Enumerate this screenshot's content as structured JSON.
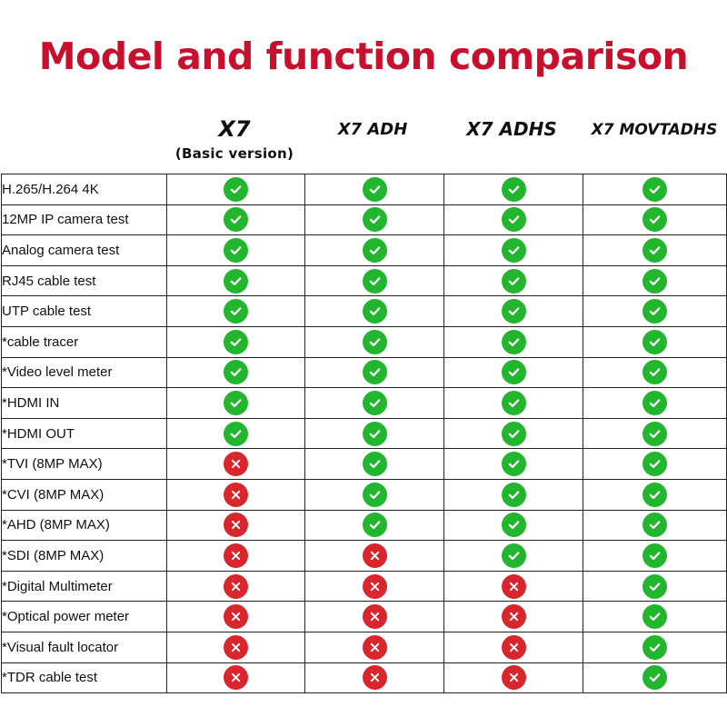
{
  "title": "Model and function comparison",
  "colors": {
    "title": "#c8102e",
    "supported": "#22b52e",
    "unsupported": "#d8262c"
  },
  "models": [
    {
      "name": "X7",
      "subtitle": "(Basic version)"
    },
    {
      "name": "X7 ADH"
    },
    {
      "name": "X7 ADHS"
    },
    {
      "name": "X7 MOVTADHS"
    }
  ],
  "icons": {
    "supported": "green-check-icon",
    "unsupported": "red-x-icon"
  },
  "features": [
    {
      "label": "H.265/H.264 4K",
      "support": [
        true,
        true,
        true,
        true
      ]
    },
    {
      "label": "12MP IP camera test",
      "support": [
        true,
        true,
        true,
        true
      ]
    },
    {
      "label": "Analog camera test",
      "support": [
        true,
        true,
        true,
        true
      ]
    },
    {
      "label": "RJ45 cable test",
      "support": [
        true,
        true,
        true,
        true
      ]
    },
    {
      "label": "UTP cable test",
      "support": [
        true,
        true,
        true,
        true
      ]
    },
    {
      "label": "*cable tracer",
      "support": [
        true,
        true,
        true,
        true
      ]
    },
    {
      "label": "*Video level meter",
      "support": [
        true,
        true,
        true,
        true
      ]
    },
    {
      "label": "*HDMI IN",
      "support": [
        true,
        true,
        true,
        true
      ]
    },
    {
      "label": "*HDMI OUT",
      "support": [
        true,
        true,
        true,
        true
      ]
    },
    {
      "label": "*TVI (8MP MAX)",
      "support": [
        false,
        true,
        true,
        true
      ]
    },
    {
      "label": "*CVI (8MP MAX)",
      "support": [
        false,
        true,
        true,
        true
      ]
    },
    {
      "label": "*AHD (8MP MAX)",
      "support": [
        false,
        true,
        true,
        true
      ]
    },
    {
      "label": "*SDI (8MP MAX)",
      "support": [
        false,
        false,
        true,
        true
      ]
    },
    {
      "label": "*Digital Multimeter",
      "support": [
        false,
        false,
        false,
        true
      ]
    },
    {
      "label": "*Optical power meter",
      "support": [
        false,
        false,
        false,
        true
      ]
    },
    {
      "label": "*Visual fault locator",
      "support": [
        false,
        false,
        false,
        true
      ]
    },
    {
      "label": "*TDR cable test",
      "support": [
        false,
        false,
        false,
        true
      ]
    }
  ]
}
